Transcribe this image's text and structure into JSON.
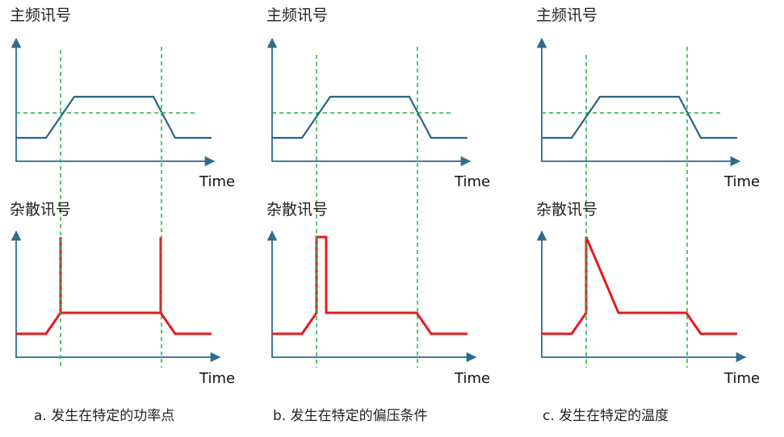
{
  "colors": {
    "axis": "#2f6b8c",
    "main_signal": "#2a6480",
    "spur_signal": "#e8191c",
    "guide": "#22b04a"
  },
  "panels": [
    {
      "main_label": "主频讯号",
      "spur_label": "杂散讯号",
      "time_label_top": "Time",
      "time_label_bottom": "Time",
      "caption": "a. 发生在特定的功率点",
      "spur_shape": "spikes-at-both-crossings"
    },
    {
      "main_label": "主频讯号",
      "spur_label": "杂散讯号",
      "time_label_top": "Time",
      "time_label_bottom": "Time",
      "caption": "b. 发生在特定的偏压条件",
      "spur_shape": "short-pulse-after-first-crossing"
    },
    {
      "main_label": "主频讯号",
      "spur_label": "杂散讯号",
      "time_label_top": "Time",
      "time_label_bottom": "Time",
      "caption": "c. 发生在特定的温度",
      "spur_shape": "spike-with-slow-decay"
    }
  ]
}
